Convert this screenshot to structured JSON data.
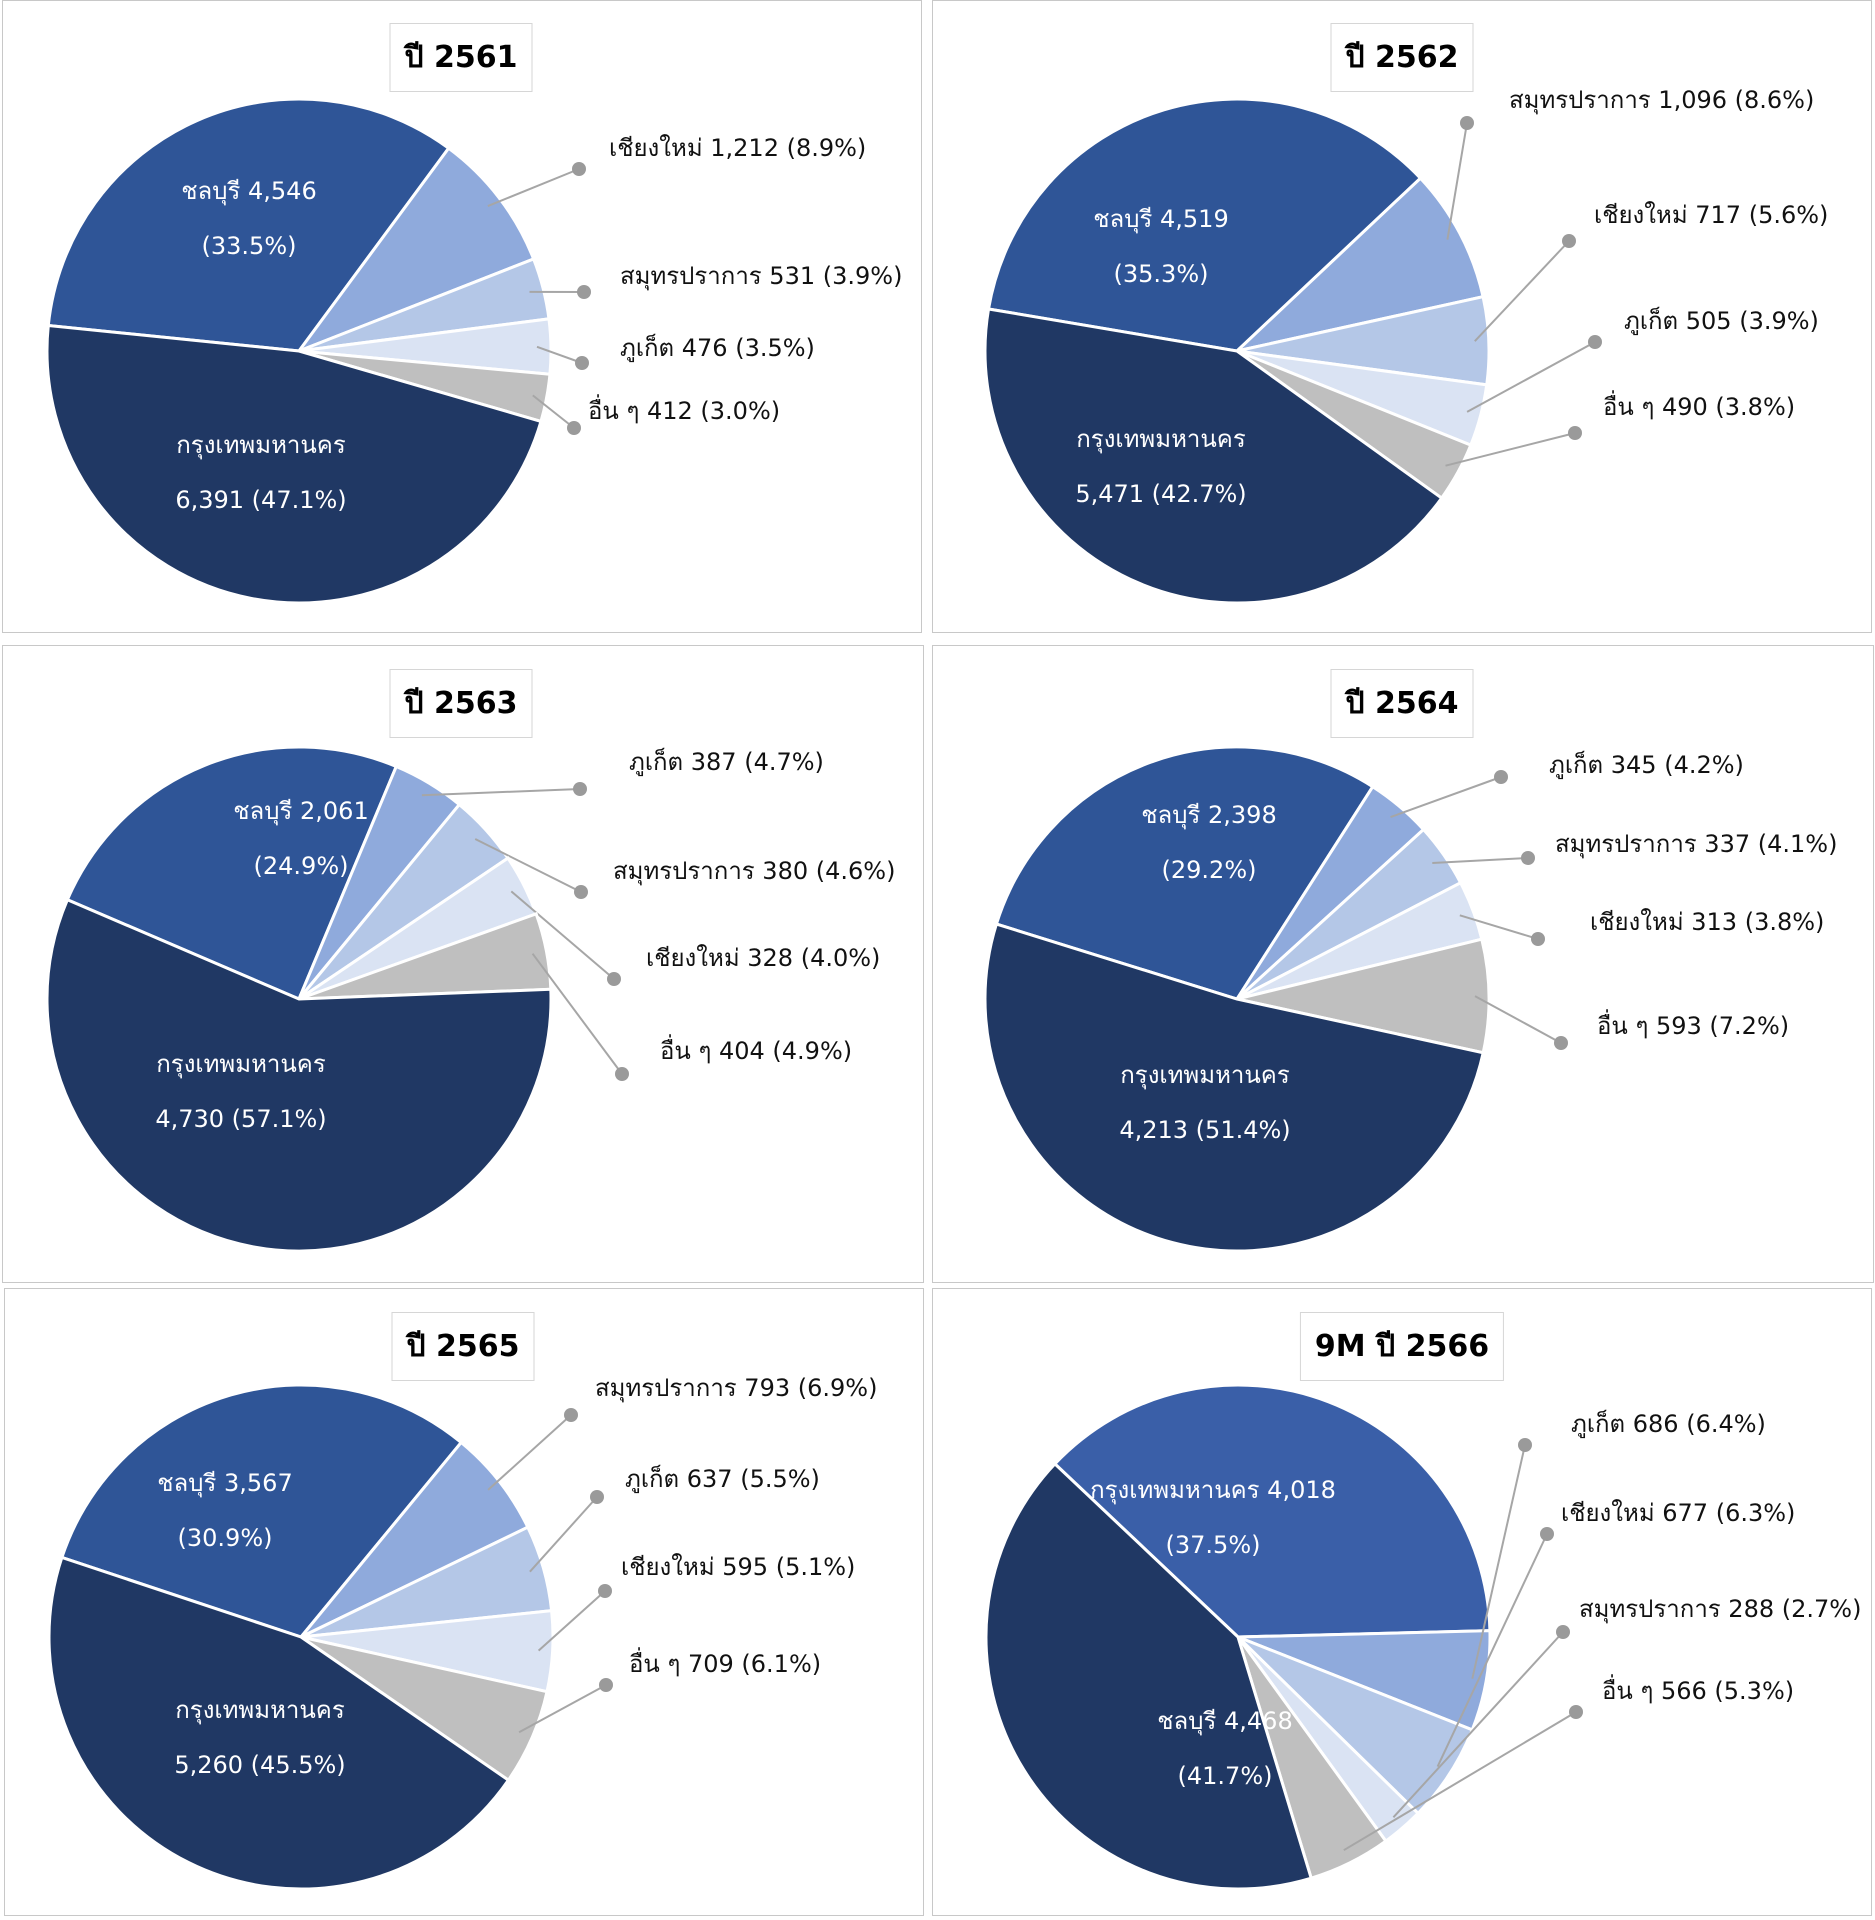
{
  "colors": {
    "dark_navy": "#203864",
    "medium_blue": "#2F5597",
    "bright_blue": "#3A5FA8",
    "light_blue": "#8FAADC",
    "lighter_blue": "#B4C7E7",
    "pale_blue": "#DAE3F3",
    "gray": "#BFBFBF"
  },
  "chart_data": [
    {
      "type": "pie",
      "title": "ปี 2561",
      "slices": [
        {
          "name": "ชลบุรี",
          "value": 4546,
          "percent": 33.5,
          "color_key": "medium_blue",
          "label_inside": true,
          "line1": "ชลบุรี 4,546",
          "line2": "(33.5%)"
        },
        {
          "name": "เชียงใหม่",
          "value": 1212,
          "percent": 8.9,
          "color_key": "light_blue",
          "label_inside": false,
          "line1": "เชียงใหม่ 1,212 (8.9%)"
        },
        {
          "name": "สมุทรปราการ",
          "value": 531,
          "percent": 3.9,
          "color_key": "lighter_blue",
          "label_inside": false,
          "line1": "สมุทรปราการ 531 (3.9%)"
        },
        {
          "name": "ภูเก็ต",
          "value": 476,
          "percent": 3.5,
          "color_key": "pale_blue",
          "label_inside": false,
          "line1": "ภูเก็ต 476 (3.5%)"
        },
        {
          "name": "อื่น ๆ",
          "value": 412,
          "percent": 3.0,
          "color_key": "gray",
          "label_inside": false,
          "line1": "อื่น ๆ 412 (3.0%)"
        },
        {
          "name": "กรุงเทพมหานคร",
          "value": 6391,
          "percent": 47.1,
          "color_key": "dark_navy",
          "label_inside": true,
          "line1": "กรุงเทพมหานคร",
          "line2": "6,391 (47.1%)"
        }
      ]
    },
    {
      "type": "pie",
      "title": "ปี 2562",
      "slices": [
        {
          "name": "ชลบุรี",
          "value": 4519,
          "percent": 35.3,
          "color_key": "medium_blue",
          "label_inside": true,
          "line1": "ชลบุรี 4,519",
          "line2": "(35.3%)"
        },
        {
          "name": "สมุทรปราการ",
          "value": 1096,
          "percent": 8.6,
          "color_key": "light_blue",
          "label_inside": false,
          "line1": "สมุทรปราการ 1,096 (8.6%)"
        },
        {
          "name": "เชียงใหม่",
          "value": 717,
          "percent": 5.6,
          "color_key": "lighter_blue",
          "label_inside": false,
          "line1": "เชียงใหม่ 717 (5.6%)"
        },
        {
          "name": "ภูเก็ต",
          "value": 505,
          "percent": 3.9,
          "color_key": "pale_blue",
          "label_inside": false,
          "line1": "ภูเก็ต 505 (3.9%)"
        },
        {
          "name": "อื่น ๆ",
          "value": 490,
          "percent": 3.8,
          "color_key": "gray",
          "label_inside": false,
          "line1": "อื่น ๆ 490 (3.8%)"
        },
        {
          "name": "กรุงเทพมหานคร",
          "value": 5471,
          "percent": 42.7,
          "color_key": "dark_navy",
          "label_inside": true,
          "line1": "กรุงเทพมหานคร",
          "line2": "5,471 (42.7%)"
        }
      ]
    },
    {
      "type": "pie",
      "title": "ปี 2563",
      "slices": [
        {
          "name": "ชลบุรี",
          "value": 2061,
          "percent": 24.9,
          "color_key": "medium_blue",
          "label_inside": true,
          "line1": "ชลบุรี 2,061",
          "line2": "(24.9%)"
        },
        {
          "name": "ภูเก็ต",
          "value": 387,
          "percent": 4.7,
          "color_key": "light_blue",
          "label_inside": false,
          "line1": "ภูเก็ต 387 (4.7%)"
        },
        {
          "name": "สมุทรปราการ",
          "value": 380,
          "percent": 4.6,
          "color_key": "lighter_blue",
          "label_inside": false,
          "line1": "สมุทรปราการ 380 (4.6%)"
        },
        {
          "name": "เชียงใหม่",
          "value": 328,
          "percent": 4.0,
          "color_key": "pale_blue",
          "label_inside": false,
          "line1": "เชียงใหม่ 328 (4.0%)"
        },
        {
          "name": "อื่น ๆ",
          "value": 404,
          "percent": 4.9,
          "color_key": "gray",
          "label_inside": false,
          "line1": "อื่น ๆ 404 (4.9%)"
        },
        {
          "name": "กรุงเทพมหานคร",
          "value": 4730,
          "percent": 57.1,
          "color_key": "dark_navy",
          "label_inside": true,
          "line1": "กรุงเทพมหานคร",
          "line2": "4,730 (57.1%)"
        }
      ]
    },
    {
      "type": "pie",
      "title": "ปี 2564",
      "slices": [
        {
          "name": "ชลบุรี",
          "value": 2398,
          "percent": 29.2,
          "color_key": "medium_blue",
          "label_inside": true,
          "line1": "ชลบุรี 2,398",
          "line2": "(29.2%)"
        },
        {
          "name": "ภูเก็ต",
          "value": 345,
          "percent": 4.2,
          "color_key": "light_blue",
          "label_inside": false,
          "line1": "ภูเก็ต 345 (4.2%)"
        },
        {
          "name": "สมุทรปราการ",
          "value": 337,
          "percent": 4.1,
          "color_key": "lighter_blue",
          "label_inside": false,
          "line1": "สมุทรปราการ 337 (4.1%)"
        },
        {
          "name": "เชียงใหม่",
          "value": 313,
          "percent": 3.8,
          "color_key": "pale_blue",
          "label_inside": false,
          "line1": "เชียงใหม่ 313 (3.8%)"
        },
        {
          "name": "อื่น ๆ",
          "value": 593,
          "percent": 7.2,
          "color_key": "gray",
          "label_inside": false,
          "line1": "อื่น ๆ 593 (7.2%)"
        },
        {
          "name": "กรุงเทพมหานคร",
          "value": 4213,
          "percent": 51.4,
          "color_key": "dark_navy",
          "label_inside": true,
          "line1": "กรุงเทพมหานคร",
          "line2": "4,213 (51.4%)"
        }
      ]
    },
    {
      "type": "pie",
      "title": "ปี 2565",
      "slices": [
        {
          "name": "ชลบุรี",
          "value": 3567,
          "percent": 30.9,
          "color_key": "medium_blue",
          "label_inside": true,
          "line1": "ชลบุรี 3,567",
          "line2": "(30.9%)"
        },
        {
          "name": "สมุทรปราการ",
          "value": 793,
          "percent": 6.9,
          "color_key": "light_blue",
          "label_inside": false,
          "line1": "สมุทรปราการ 793 (6.9%)"
        },
        {
          "name": "ภูเก็ต",
          "value": 637,
          "percent": 5.5,
          "color_key": "lighter_blue",
          "label_inside": false,
          "line1": "ภูเก็ต 637 (5.5%)"
        },
        {
          "name": "เชียงใหม่",
          "value": 595,
          "percent": 5.1,
          "color_key": "pale_blue",
          "label_inside": false,
          "line1": "เชียงใหม่ 595 (5.1%)"
        },
        {
          "name": "อื่น ๆ",
          "value": 709,
          "percent": 6.1,
          "color_key": "gray",
          "label_inside": false,
          "line1": "อื่น ๆ 709 (6.1%)"
        },
        {
          "name": "กรุงเทพมหานคร",
          "value": 5260,
          "percent": 45.5,
          "color_key": "dark_navy",
          "label_inside": true,
          "line1": "กรุงเทพมหานคร",
          "line2": "5,260 (45.5%)"
        }
      ]
    },
    {
      "type": "pie",
      "title": "9M ปี 2566",
      "slices": [
        {
          "name": "กรุงเทพมหานคร",
          "value": 4018,
          "percent": 37.5,
          "color_key": "bright_blue",
          "label_inside": true,
          "line1": "กรุงเทพมหานคร 4,018",
          "line2": "(37.5%)"
        },
        {
          "name": "ภูเก็ต",
          "value": 686,
          "percent": 6.4,
          "color_key": "light_blue",
          "label_inside": false,
          "line1": "ภูเก็ต 686 (6.4%)"
        },
        {
          "name": "เชียงใหม่",
          "value": 677,
          "percent": 6.3,
          "color_key": "lighter_blue",
          "label_inside": false,
          "line1": "เชียงใหม่ 677 (6.3%)"
        },
        {
          "name": "สมุทรปราการ",
          "value": 288,
          "percent": 2.7,
          "color_key": "pale_blue",
          "label_inside": false,
          "line1": "สมุทรปราการ 288 (2.7%)"
        },
        {
          "name": "อื่น ๆ",
          "value": 566,
          "percent": 5.3,
          "color_key": "gray",
          "label_inside": false,
          "line1": "อื่น ๆ 566 (5.3%)"
        },
        {
          "name": "ชลบุรี",
          "value": 4468,
          "percent": 41.7,
          "color_key": "dark_navy",
          "label_inside": true,
          "line1": "ชลบุรี 4,468",
          "line2": "(41.7%)"
        }
      ]
    }
  ]
}
